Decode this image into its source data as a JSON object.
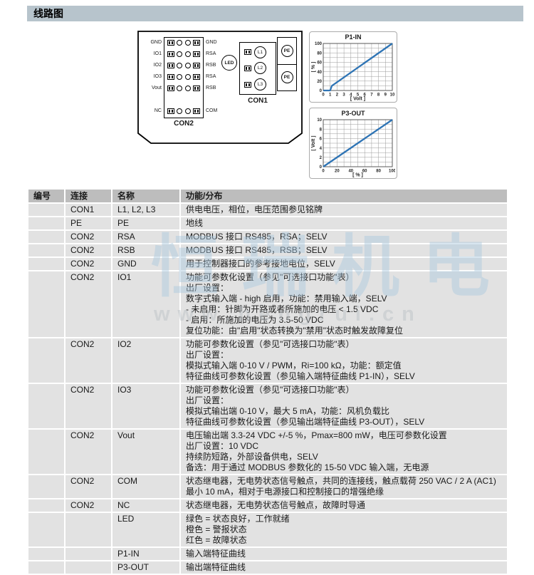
{
  "page": {
    "title": "线路图"
  },
  "diagram": {
    "con2": {
      "label": "CON2",
      "left_labels": [
        "GND",
        "IO1",
        "IO2",
        "IO3",
        "Vout",
        "NC"
      ],
      "right_labels": [
        "GND",
        "RSA",
        "RSB",
        "RSA",
        "RSB",
        "COM"
      ]
    },
    "con1": {
      "label": "CON1",
      "terminals": [
        "L1",
        "L2",
        "L3"
      ]
    },
    "led_label": "LED",
    "pe_labels": [
      "PE",
      "PE"
    ]
  },
  "chart_data": [
    {
      "type": "line",
      "title": "P1-IN",
      "xlabel": "[ Volt ]",
      "ylabel": "[ % ]",
      "xlim": [
        0,
        10
      ],
      "ylim": [
        0,
        100
      ],
      "xticks": [
        0,
        1,
        2,
        3,
        4,
        5,
        6,
        7,
        8,
        9,
        10
      ],
      "yticks": [
        0,
        20,
        40,
        60,
        80,
        100
      ],
      "xgrid_step": 1,
      "ygrid_step": 10,
      "grid": true,
      "legend": null,
      "line_color": "#2e74b5",
      "points": [
        [
          0,
          0
        ],
        [
          1,
          0
        ],
        [
          1.25,
          10
        ],
        [
          10,
          100
        ]
      ]
    },
    {
      "type": "line",
      "title": "P3-OUT",
      "xlabel": "[ % ]",
      "ylabel": "[ Volt ]",
      "xlim": [
        0,
        100
      ],
      "ylim": [
        0,
        10
      ],
      "xticks": [
        0,
        20,
        40,
        60,
        80,
        100
      ],
      "yticks": [
        0,
        2,
        4,
        6,
        8,
        10
      ],
      "xgrid_step": 10,
      "ygrid_step": 1,
      "grid": true,
      "legend": null,
      "line_color": "#2e74b5",
      "points": [
        [
          0,
          0
        ],
        [
          100,
          10
        ]
      ]
    }
  ],
  "table": {
    "headers": [
      "编号",
      "连接",
      "名称",
      "功能/分布"
    ],
    "rows": [
      {
        "id": "",
        "conn": "CON1",
        "name": "L1, L2, L3",
        "desc": [
          "供电电压，相位，电压范围参见铭牌"
        ]
      },
      {
        "id": "",
        "conn": "PE",
        "name": "PE",
        "desc": [
          "地线"
        ]
      },
      {
        "id": "",
        "conn": "CON2",
        "name": "RSA",
        "desc": [
          "MODBUS 接口 RS485，RSA；SELV"
        ]
      },
      {
        "id": "",
        "conn": "CON2",
        "name": "RSB",
        "desc": [
          "MODBUS 接口 RS485，RSB；SELV"
        ]
      },
      {
        "id": "",
        "conn": "CON2",
        "name": "GND",
        "desc": [
          "用于控制器接口的参考接地电位，SELV"
        ]
      },
      {
        "id": "",
        "conn": "CON2",
        "name": "IO1",
        "desc": [
          "功能可参数化设置（参见\"可选接口功能\"表）",
          "出厂设置：",
          "数字式输入端 - high 启用，功能：禁用输入端，SELV",
          "- 未启用：针脚为开路或者所施加的电压 < 1.5 VDC",
          "- 启用：所施加的电压为 3.5-50 VDC",
          "复位功能：由\"启用\"状态转换为\"禁用\"状态时触发故障复位"
        ]
      },
      {
        "id": "",
        "conn": "CON2",
        "name": "IO2",
        "desc": [
          "功能可参数化设置（参见\"可选接口功能\"表）",
          "出厂设置：",
          "模拟式输入端 0-10 V / PWM，Ri=100 kΩ，功能：额定值",
          "特征曲线可参数化设置（参见输入端特征曲线 P1-IN），SELV"
        ]
      },
      {
        "id": "",
        "conn": "CON2",
        "name": "IO3",
        "desc": [
          "功能可参数化设置（参见\"可选接口功能\"表）",
          "出厂设置：",
          "模拟式输出端 0-10 V，最大 5 mA，功能：风机负载比",
          "特征曲线可参数化设置（参见输出端特征曲线 P3-OUT），SELV"
        ]
      },
      {
        "id": "",
        "conn": "CON2",
        "name": "Vout",
        "desc": [
          "电压输出端 3.3-24 VDC +/-5 %，Pmax=800 mW，电压可参数化设置",
          "出厂设置：10 VDC",
          "持续防短路，外部设备供电，SELV",
          "备选：用于通过 MODBUS 参数化的 15-50 VDC 输入端，无电源"
        ]
      },
      {
        "id": "",
        "conn": "CON2",
        "name": "COM",
        "desc": [
          "状态继电器，无电势状态信号触点，共同的连接线，触点载荷 250 VAC / 2 A (AC1)",
          "最小 10 mA，相对于电源接口和控制接口的增强绝缘"
        ]
      },
      {
        "id": "",
        "conn": "CON2",
        "name": "NC",
        "desc": [
          "状态继电器，无电势状态信号触点，故障时导通"
        ]
      },
      {
        "id": "",
        "conn": "",
        "name": "LED",
        "desc": [
          "绿色 = 状态良好，工作就绪",
          "橙色 = 警报状态",
          "红色 = 故障状态"
        ]
      },
      {
        "id": "",
        "conn": "",
        "name": "P1-IN",
        "desc": [
          "输入端特征曲线"
        ]
      },
      {
        "id": "",
        "conn": "",
        "name": "P3-OUT",
        "desc": [
          "输出端特征曲线"
        ]
      }
    ]
  },
  "watermark": {
    "text": "恒瑞机电",
    "url": "www.hengrui.cn"
  }
}
